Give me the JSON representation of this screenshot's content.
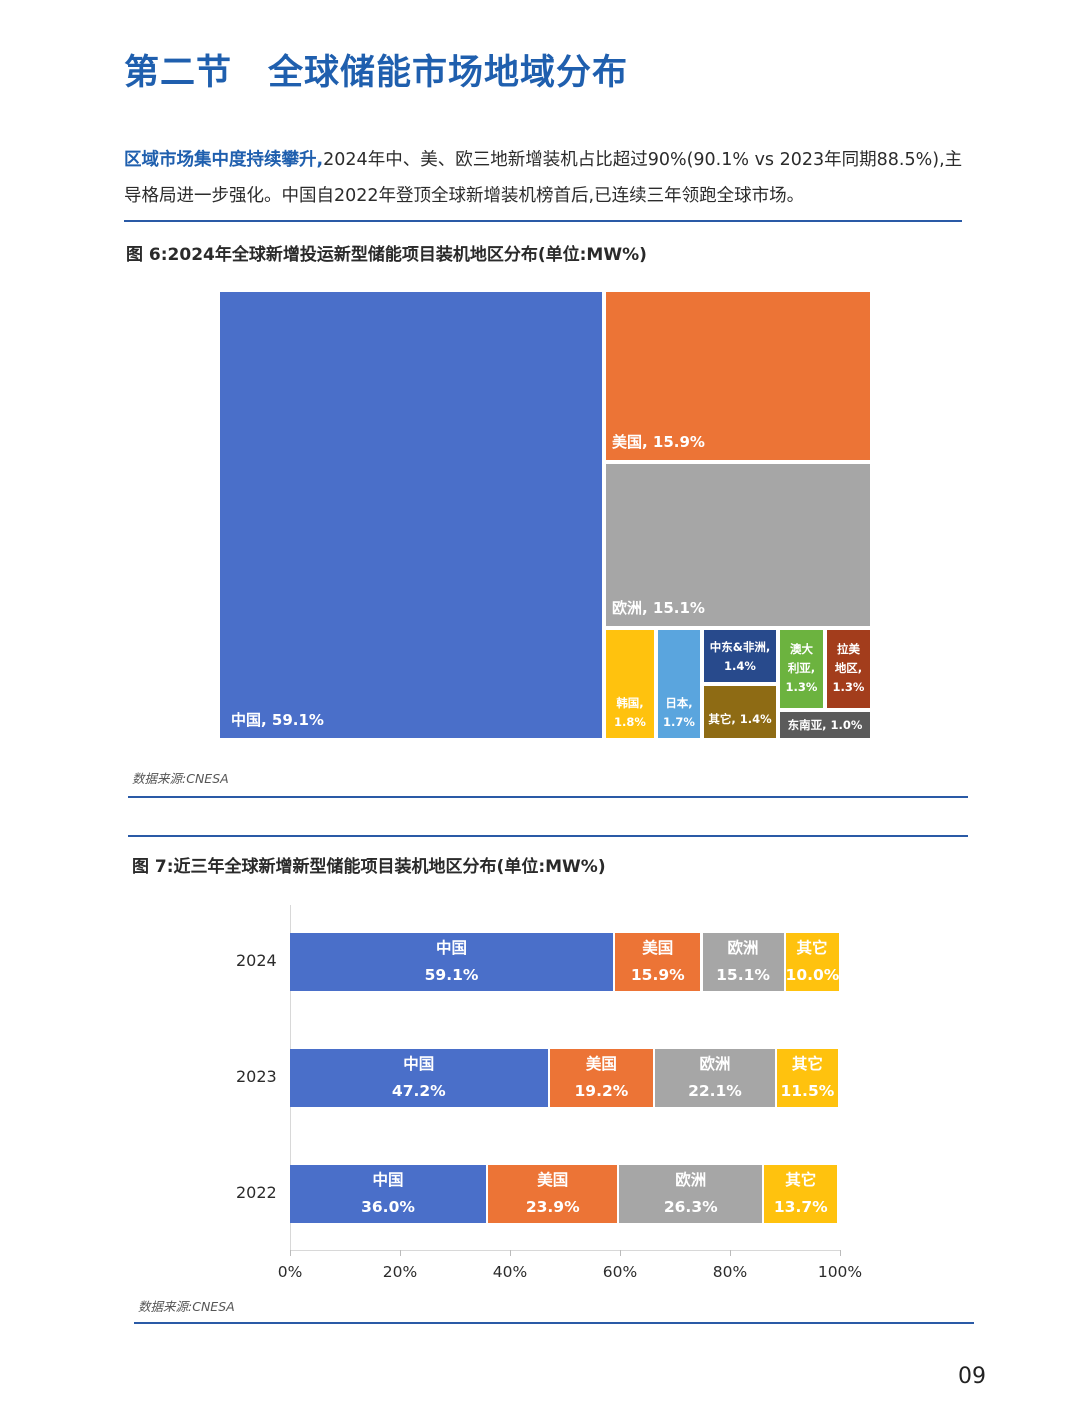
{
  "section_title": "第二节　全球储能市场地域分布",
  "intro": {
    "highlight": "区域市场集中度持续攀升,",
    "text": "2024年中、美、欧三地新增装机占比超过90%(90.1% vs 2023年同期88.5%),主导格局进一步强化。中国自2022年登顶全球新增装机榜首后,已连续三年领跑全球市场。"
  },
  "fig6": {
    "title": "图 6:2024年全球新增投运新型储能项目装机地区分布(单位:MW%)",
    "source": "数据来源:CNESA"
  },
  "fig7": {
    "title": "图 7:近三年全球新增新型储能项目装机地区分布(单位:MW%)",
    "source": "数据来源:CNESA"
  },
  "page_number": "09",
  "colors": {
    "china": "#4a6fc9",
    "us": "#ec7436",
    "europe": "#a6a6a6",
    "korea": "#ffc20e",
    "japan": "#5aa5de",
    "mea": "#284a8c",
    "other_tm": "#8e6b14",
    "australia": "#6cb33f",
    "latam": "#a33d1c",
    "sea": "#5b5b5b",
    "other_bar": "#ffc20e"
  },
  "chart_data": [
    {
      "type": "treemap",
      "title": "图 6:2024年全球新增投运新型储能项目装机地区分布(单位:MW%)",
      "unit": "%",
      "items": [
        {
          "name": "中国",
          "value": 59.1,
          "label": "中国, 59.1%",
          "color": "#4a6fc9"
        },
        {
          "name": "美国",
          "value": 15.9,
          "label": "美国, 15.9%",
          "color": "#ec7436"
        },
        {
          "name": "欧洲",
          "value": 15.1,
          "label": "欧洲, 15.1%",
          "color": "#a6a6a6"
        },
        {
          "name": "韩国",
          "value": 1.8,
          "label_lines": [
            "韩国,",
            "1.8%"
          ],
          "color": "#ffc20e"
        },
        {
          "name": "日本",
          "value": 1.7,
          "label_lines": [
            "日本,",
            "1.7%"
          ],
          "color": "#5aa5de"
        },
        {
          "name": "中东&非洲",
          "value": 1.4,
          "label_lines": [
            "中东&非洲,",
            "1.4%"
          ],
          "color": "#284a8c"
        },
        {
          "name": "其它",
          "value": 1.4,
          "label_lines": [
            "其它, 1.4%"
          ],
          "color": "#8e6b14"
        },
        {
          "name": "澳大利亚",
          "value": 1.3,
          "label_lines": [
            "澳大",
            "利亚,",
            "1.3%"
          ],
          "color": "#6cb33f"
        },
        {
          "name": "拉美地区",
          "value": 1.3,
          "label_lines": [
            "拉美",
            "地区,",
            "1.3%"
          ],
          "color": "#a33d1c"
        },
        {
          "name": "东南亚",
          "value": 1.0,
          "label_lines": [
            "东南亚, 1.0%"
          ],
          "color": "#5b5b5b"
        }
      ]
    },
    {
      "type": "bar",
      "orientation": "horizontal",
      "stacked": "percent",
      "title": "图 7:近三年全球新增新型储能项目装机地区分布(单位:MW%)",
      "categories": [
        "2024",
        "2023",
        "2022"
      ],
      "series": [
        {
          "name": "中国",
          "values": [
            59.1,
            47.2,
            36.0
          ],
          "labels": [
            "59.1%",
            "47.2%",
            "36.0%"
          ],
          "color": "#4a6fc9"
        },
        {
          "name": "美国",
          "values": [
            15.9,
            19.2,
            23.9
          ],
          "labels": [
            "15.9%",
            "19.2%",
            "23.9%"
          ],
          "color": "#ec7436"
        },
        {
          "name": "欧洲",
          "values": [
            15.1,
            22.1,
            26.3
          ],
          "labels": [
            "15.1%",
            "22.1%",
            "26.3%"
          ],
          "color": "#a6a6a6"
        },
        {
          "name": "其它",
          "values": [
            10.0,
            11.5,
            13.7
          ],
          "labels": [
            "10.0%",
            "11.5%",
            "13.7%"
          ],
          "color": "#ffc20e"
        }
      ],
      "xlim": [
        0,
        100
      ],
      "xticks": [
        "0%",
        "20%",
        "40%",
        "60%",
        "80%",
        "100%"
      ],
      "legend": "none",
      "grid": false
    }
  ]
}
